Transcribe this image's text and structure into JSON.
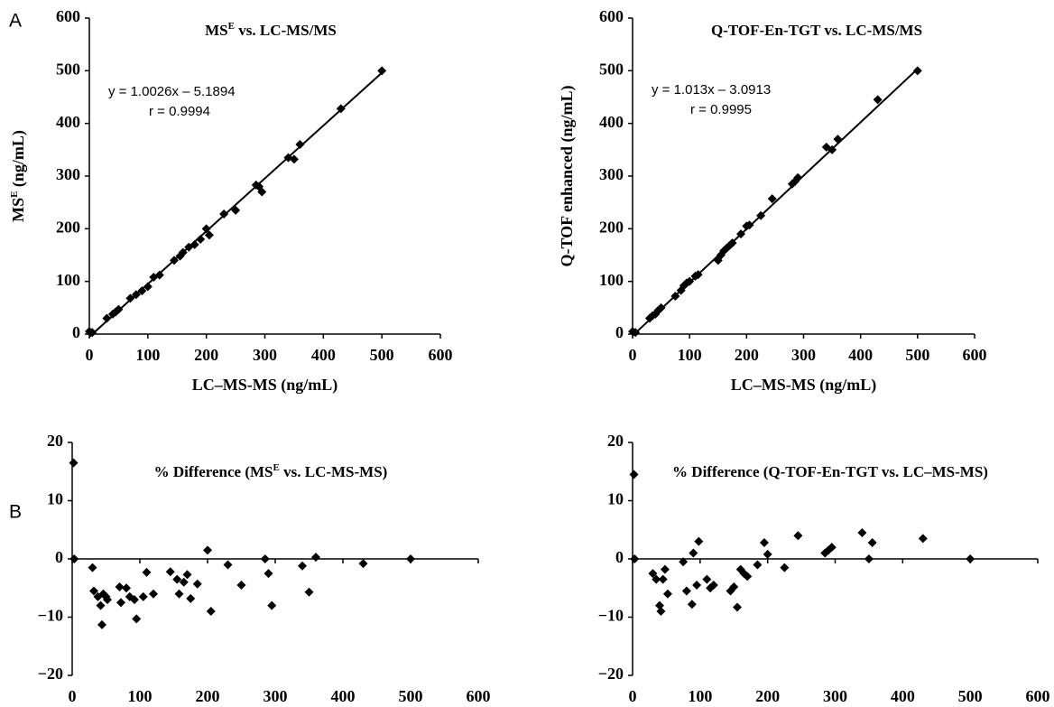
{
  "panel_labels": [
    "A",
    "B"
  ],
  "chart_data": [
    {
      "type": "scatter",
      "title": [
        "MS",
        "E",
        " vs. LC-MS/MS"
      ],
      "xlabel": "LC–MS-MS (ng/mL)",
      "ylabel": [
        "MS",
        "E",
        " (ng/mL)"
      ],
      "color": "#000000",
      "x": [
        0,
        5,
        30,
        40,
        45,
        50,
        70,
        80,
        90,
        100,
        110,
        120,
        145,
        155,
        160,
        170,
        180,
        190,
        200,
        205,
        230,
        250,
        285,
        290,
        295,
        340,
        350,
        360,
        430,
        500
      ],
      "y": [
        5,
        3,
        30,
        38,
        42,
        47,
        68,
        75,
        82,
        90,
        108,
        112,
        140,
        148,
        155,
        165,
        170,
        180,
        200,
        188,
        228,
        235,
        283,
        280,
        270,
        335,
        332,
        360,
        428,
        500
      ],
      "xlim": [
        0,
        600
      ],
      "ylim": [
        0,
        600
      ],
      "xticks": [
        0,
        100,
        200,
        300,
        400,
        500,
        600
      ],
      "yticks": [
        0,
        100,
        200,
        300,
        400,
        500,
        600
      ],
      "fit": {
        "slope": 1.0026,
        "intercept": -5.1894,
        "label": "y = 1.0026x – 5.1894"
      },
      "r_label": "r = 0.9994"
    },
    {
      "type": "scatter",
      "title": [
        "Q-TOF-En-TGT vs. LC-MS/MS"
      ],
      "xlabel": "LC–MS-MS (ng/mL)",
      "ylabel": [
        "Q-TOF enhanced (ng/mL)"
      ],
      "color": "#000000",
      "x": [
        0,
        5,
        30,
        35,
        40,
        45,
        50,
        75,
        85,
        90,
        95,
        100,
        110,
        115,
        150,
        155,
        160,
        165,
        170,
        175,
        190,
        200,
        205,
        225,
        245,
        280,
        285,
        290,
        340,
        350,
        360,
        430,
        500
      ],
      "y": [
        5,
        3,
        30,
        35,
        38,
        45,
        50,
        72,
        83,
        92,
        97,
        100,
        110,
        113,
        140,
        150,
        158,
        163,
        168,
        173,
        190,
        205,
        207,
        225,
        257,
        285,
        290,
        297,
        355,
        350,
        370,
        445,
        500
      ],
      "xlim": [
        0,
        600
      ],
      "ylim": [
        0,
        600
      ],
      "xticks": [
        0,
        100,
        200,
        300,
        400,
        500,
        600
      ],
      "yticks": [
        0,
        100,
        200,
        300,
        400,
        500,
        600
      ],
      "fit": {
        "slope": 1.013,
        "intercept": -3.0913,
        "label": "y = 1.013x – 3.0913"
      },
      "r_label": "r = 0.9995"
    },
    {
      "type": "scatter",
      "title": [
        "% Difference (MS",
        "E",
        " vs. LC-MS-MS)"
      ],
      "color": "#000000",
      "x": [
        2,
        3,
        30,
        32,
        38,
        42,
        44,
        46,
        50,
        52,
        70,
        72,
        80,
        85,
        92,
        95,
        105,
        110,
        120,
        145,
        155,
        158,
        165,
        170,
        175,
        185,
        200,
        205,
        230,
        250,
        285,
        290,
        295,
        340,
        350,
        360,
        430,
        500
      ],
      "y": [
        16.5,
        0,
        -1.5,
        -5.5,
        -6.5,
        -8,
        -11.3,
        -6,
        -6.5,
        -7,
        -4.8,
        -7.5,
        -5,
        -6.5,
        -7,
        -10.3,
        -6.5,
        -2.3,
        -6,
        -2.2,
        -3.5,
        -6,
        -4,
        -2.7,
        -6.8,
        -4.3,
        1.5,
        -9,
        -1,
        -4.5,
        0,
        -2.5,
        -8,
        -1.2,
        -5.7,
        0.3,
        -0.8,
        0
      ],
      "xlim": [
        0,
        600
      ],
      "ylim": [
        -20,
        20
      ],
      "xticks": [
        0,
        100,
        200,
        300,
        400,
        500,
        600
      ],
      "yticks": [
        {
          "value": -20,
          "label": "−20"
        },
        {
          "value": -10,
          "label": "−10"
        },
        0,
        10,
        20
      ]
    },
    {
      "type": "scatter",
      "title": [
        "% Difference (Q-TOF-En-TGT vs. LC–MS-MS)"
      ],
      "color": "#000000",
      "x": [
        2,
        3,
        30,
        35,
        40,
        42,
        45,
        48,
        52,
        75,
        80,
        88,
        90,
        95,
        98,
        110,
        115,
        120,
        145,
        150,
        155,
        160,
        165,
        170,
        185,
        195,
        200,
        225,
        245,
        285,
        290,
        295,
        340,
        350,
        355,
        430,
        500
      ],
      "y": [
        14.5,
        0,
        -2.5,
        -3.5,
        -8,
        -9,
        -3.5,
        -1.8,
        -6,
        -0.5,
        -5.5,
        -7.8,
        1,
        -4.5,
        3,
        -3.5,
        -5,
        -4.5,
        -5.5,
        -4.8,
        -8.3,
        -1.8,
        -2.5,
        -3,
        -1,
        2.8,
        0.8,
        -1.5,
        4,
        1,
        1.5,
        2,
        4.5,
        0,
        2.8,
        3.5,
        0
      ],
      "xlim": [
        0,
        600
      ],
      "ylim": [
        -20,
        20
      ],
      "xticks": [
        0,
        100,
        200,
        300,
        400,
        500,
        600
      ],
      "yticks": [
        {
          "value": -20,
          "label": "−20"
        },
        {
          "value": -10,
          "label": "−10"
        },
        0,
        10,
        20
      ]
    }
  ]
}
